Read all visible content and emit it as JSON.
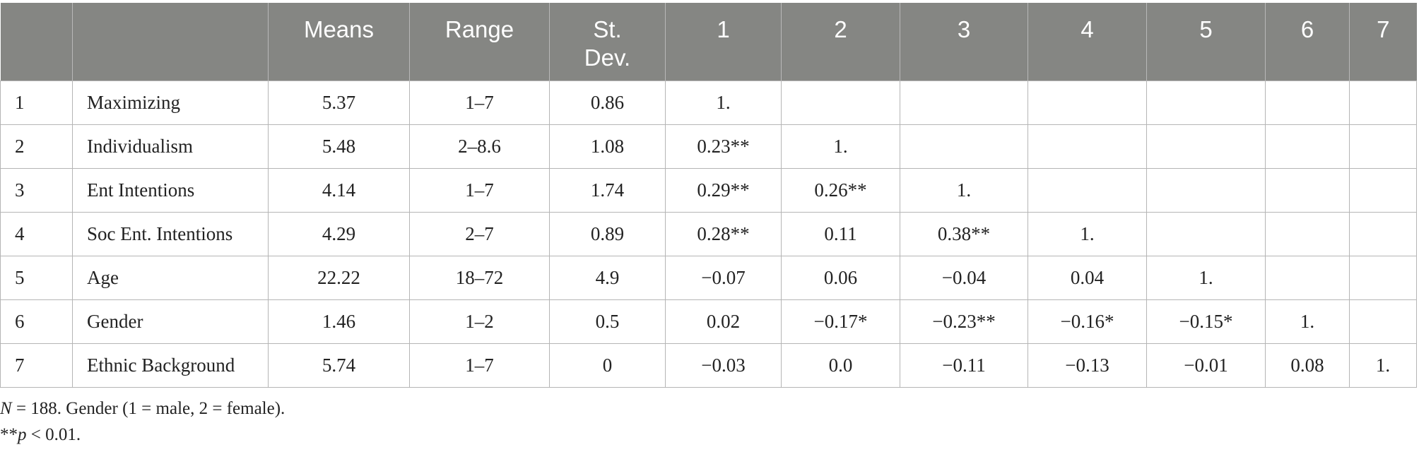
{
  "table": {
    "headers": [
      "",
      "",
      "Means",
      "Range",
      "St.\nDev.",
      "1",
      "2",
      "3",
      "4",
      "5",
      "6",
      "7"
    ],
    "rows": [
      [
        "1",
        "Maximizing",
        "5.37",
        "1–7",
        "0.86",
        "1.",
        "",
        "",
        "",
        "",
        "",
        ""
      ],
      [
        "2",
        "Individualism",
        "5.48",
        "2–8.6",
        "1.08",
        "0.23**",
        "1.",
        "",
        "",
        "",
        "",
        ""
      ],
      [
        "3",
        "Ent Intentions",
        "4.14",
        "1–7",
        "1.74",
        "0.29**",
        "0.26**",
        "1.",
        "",
        "",
        "",
        ""
      ],
      [
        "4",
        "Soc Ent. Intentions",
        "4.29",
        "2–7",
        "0.89",
        "0.28**",
        "0.11",
        "0.38**",
        "1.",
        "",
        "",
        ""
      ],
      [
        "5",
        "Age",
        "22.22",
        "18–72",
        "4.9",
        "−0.07",
        "0.06",
        "−0.04",
        "0.04",
        "1.",
        "",
        ""
      ],
      [
        "6",
        "Gender",
        "1.46",
        "1–2",
        "0.5",
        "0.02",
        "−0.17*",
        "−0.23**",
        "−0.16*",
        "−0.15*",
        "1.",
        ""
      ],
      [
        "7",
        "Ethnic Background",
        "5.74",
        "1–7",
        "0",
        "−0.03",
        "0.0",
        "−0.11",
        "−0.13",
        "−0.01",
        "0.08",
        "1."
      ]
    ]
  },
  "notes": {
    "n_symbol": "N",
    "n_rest": " = 188. Gender (1 = male, 2 = female).",
    "p_prefix": "**",
    "p_symbol": "p",
    "p_rest": " < 0.01."
  },
  "colors": {
    "header_bg": "#858683",
    "header_text": "#ffffff",
    "grid_line": "#b5b5b5"
  }
}
